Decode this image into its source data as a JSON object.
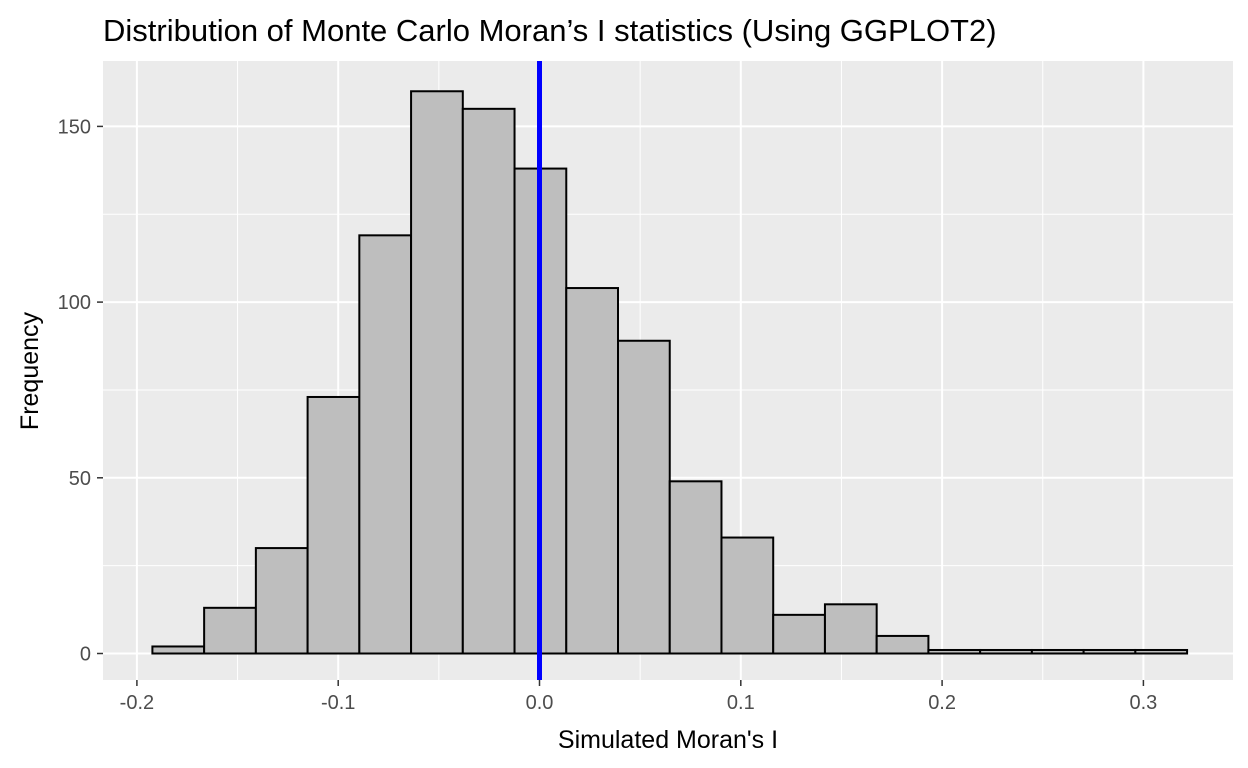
{
  "chart_data": {
    "type": "bar",
    "subtype": "histogram",
    "title": "Distribution of Monte Carlo Moran’s I statistics (Using GGPLOT2)",
    "xlabel": "Simulated Moran's I",
    "ylabel": "Frequency",
    "xlim": [
      -0.2,
      0.3
    ],
    "ylim": [
      0,
      150
    ],
    "x_ticks": [
      -0.2,
      -0.1,
      0.0,
      0.1,
      0.2,
      0.3
    ],
    "x_tick_labels": [
      "-0.2",
      "-0.1",
      "0.0",
      "0.1",
      "0.2",
      "0.3"
    ],
    "y_ticks": [
      0,
      50,
      100,
      150
    ],
    "y_tick_labels": [
      "0",
      "50",
      "100",
      "150"
    ],
    "bins": [
      {
        "x0": -0.1923,
        "x1": -0.1666,
        "count": 2
      },
      {
        "x0": -0.1666,
        "x1": -0.1409,
        "count": 13
      },
      {
        "x0": -0.1409,
        "x1": -0.1152,
        "count": 30
      },
      {
        "x0": -0.1152,
        "x1": -0.0895,
        "count": 73
      },
      {
        "x0": -0.0895,
        "x1": -0.0638,
        "count": 119
      },
      {
        "x0": -0.0638,
        "x1": -0.0381,
        "count": 160
      },
      {
        "x0": -0.0381,
        "x1": -0.0124,
        "count": 155
      },
      {
        "x0": -0.0124,
        "x1": 0.0133,
        "count": 138
      },
      {
        "x0": 0.0133,
        "x1": 0.039,
        "count": 104
      },
      {
        "x0": 0.039,
        "x1": 0.0647,
        "count": 89
      },
      {
        "x0": 0.0647,
        "x1": 0.0904,
        "count": 49
      },
      {
        "x0": 0.0904,
        "x1": 0.1161,
        "count": 33
      },
      {
        "x0": 0.1161,
        "x1": 0.1418,
        "count": 11
      },
      {
        "x0": 0.1418,
        "x1": 0.1675,
        "count": 14
      },
      {
        "x0": 0.1675,
        "x1": 0.1932,
        "count": 5
      },
      {
        "x0": 0.1932,
        "x1": 0.2189,
        "count": 1
      },
      {
        "x0": 0.2189,
        "x1": 0.2446,
        "count": 1
      },
      {
        "x0": 0.2446,
        "x1": 0.2703,
        "count": 1
      },
      {
        "x0": 0.2703,
        "x1": 0.296,
        "count": 1
      },
      {
        "x0": 0.296,
        "x1": 0.3217,
        "count": 1
      }
    ],
    "reference_line": {
      "x": 0.0,
      "orientation": "vertical",
      "color": "#0000ff"
    },
    "colors": {
      "panel_background": "#ebebeb",
      "grid": "#ffffff",
      "bar_fill": "#bebebe",
      "bar_outline": "#000000",
      "tick_text": "#4d4d4d"
    }
  }
}
